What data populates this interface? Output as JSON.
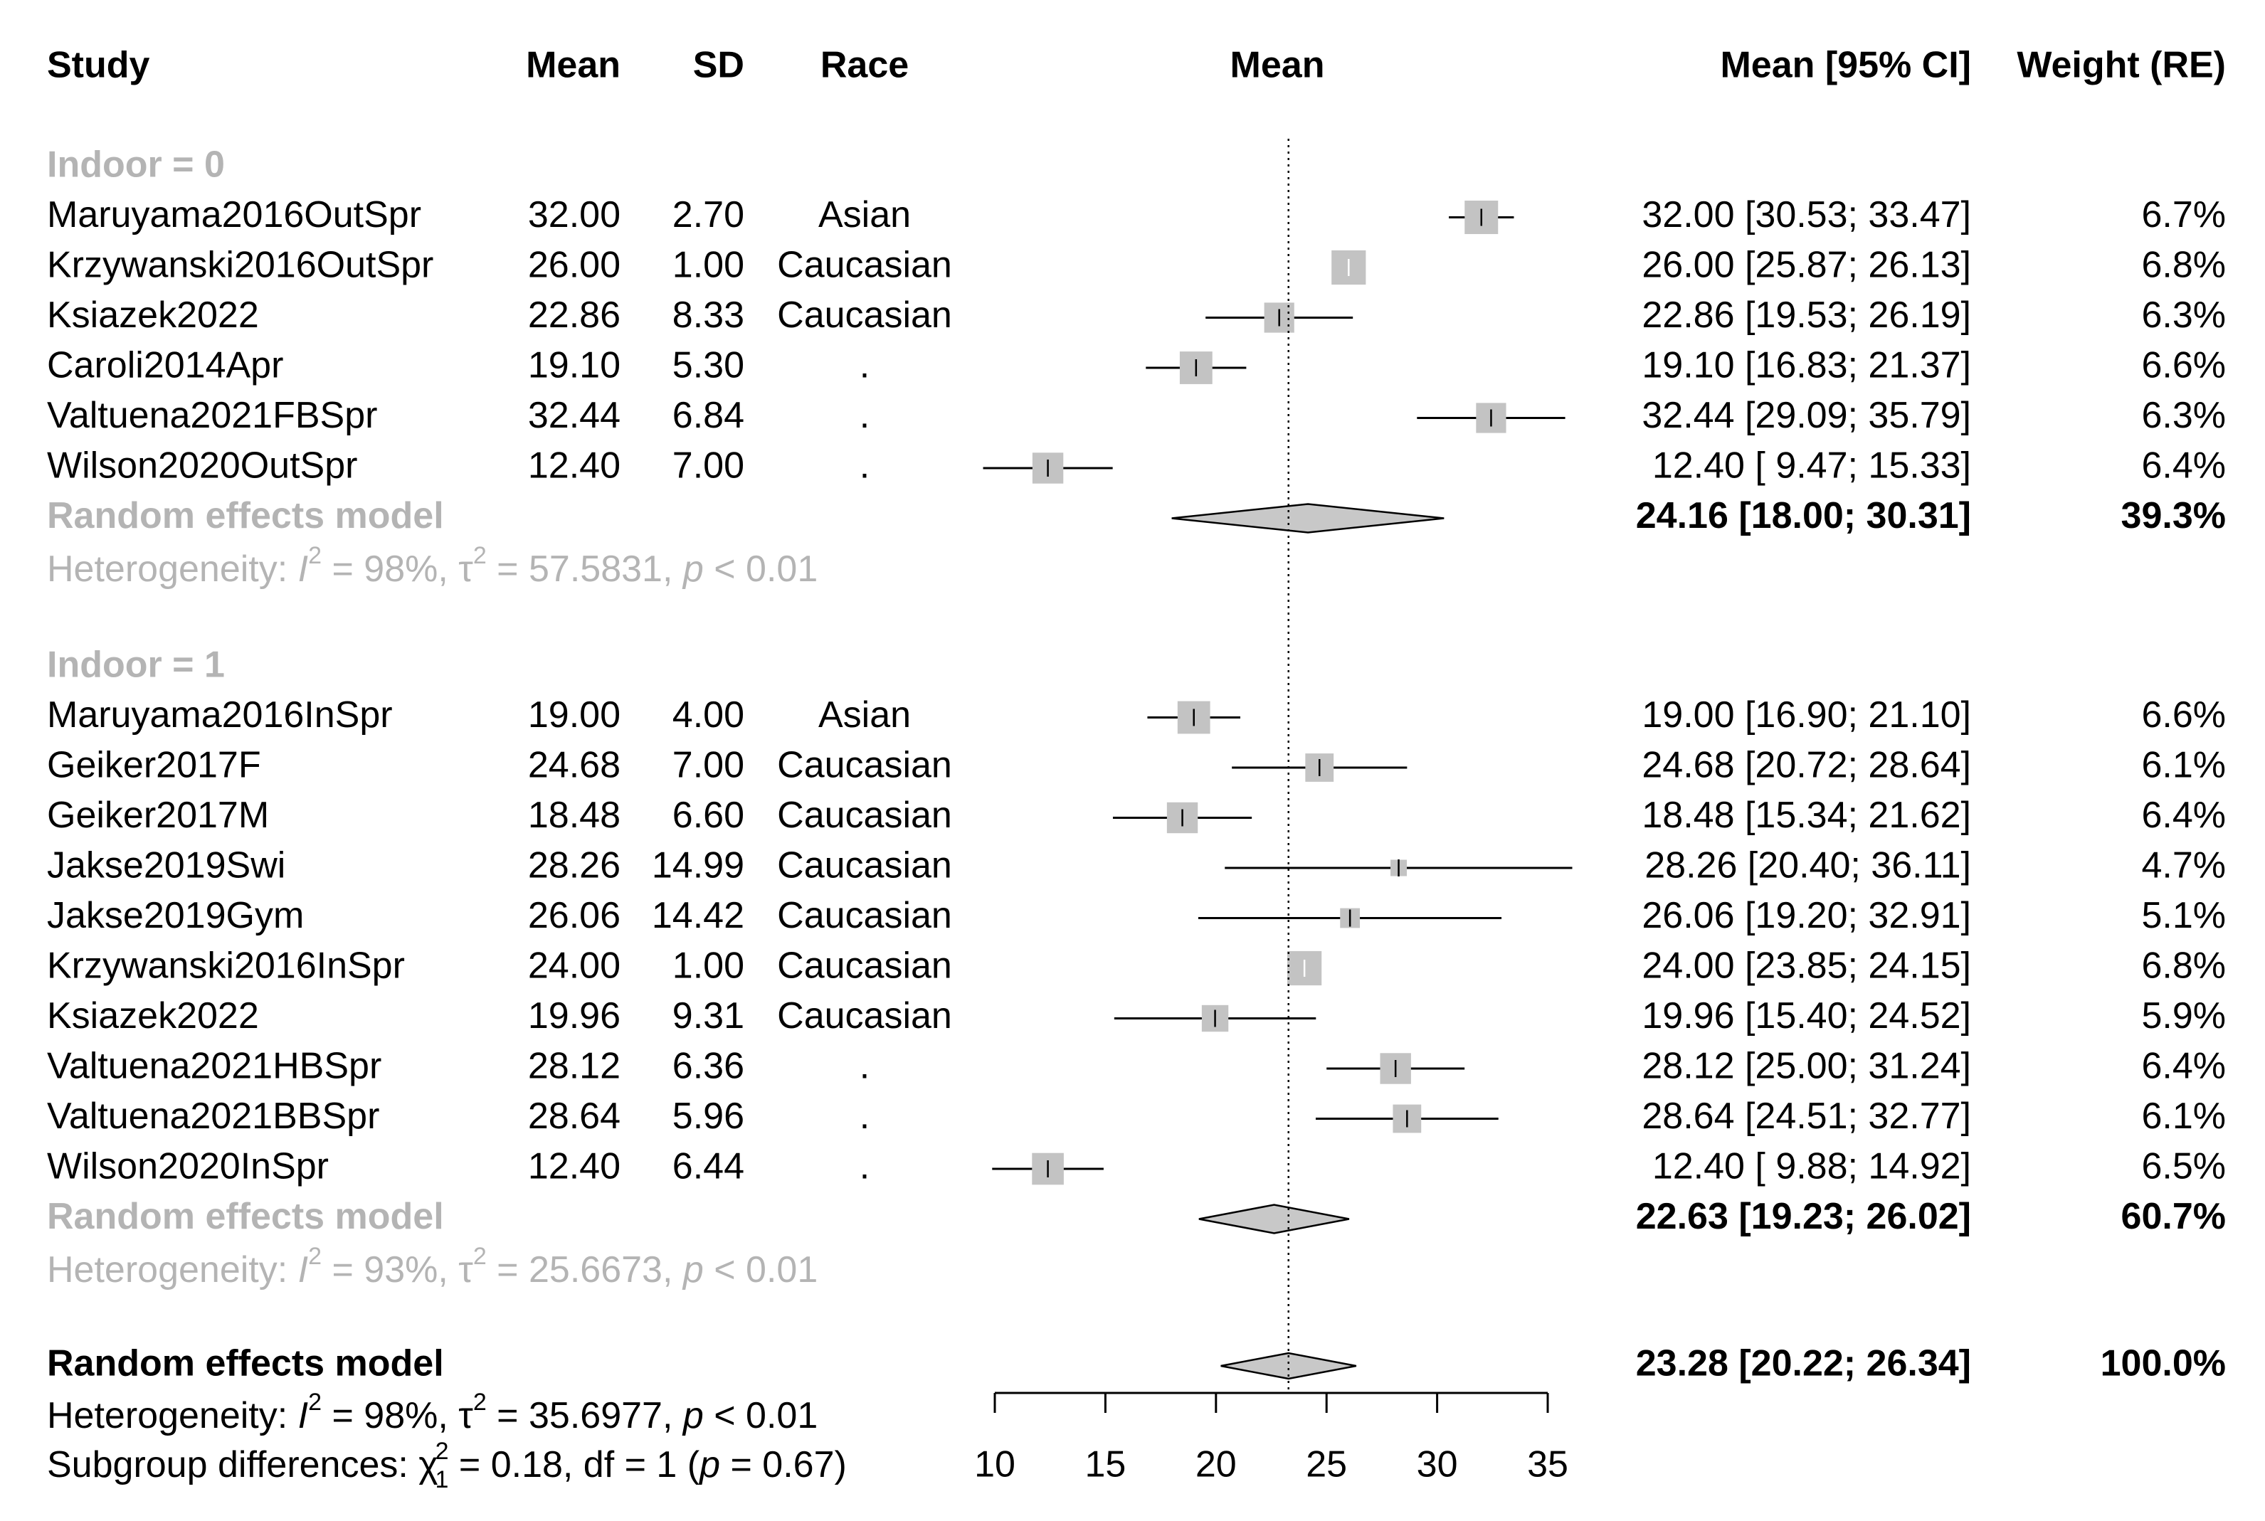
{
  "header": {
    "study": "Study",
    "mean": "Mean",
    "sd": "SD",
    "race": "Race",
    "plot": "Mean",
    "ci": "Mean [95% CI]",
    "weight": "Weight (RE)"
  },
  "colors": {
    "subgroup_gray": "#b4b4b4",
    "box_gray": "#c3c3c3",
    "ink": "#000000",
    "diamond_fill": "#c8c8c8"
  },
  "chart_data": {
    "type": "forest",
    "xlabel": "",
    "ylabel": "",
    "xlim": [
      10,
      35
    ],
    "xticks": [
      10,
      15,
      20,
      25,
      30,
      35
    ],
    "reference_line": 23.28,
    "groups": [
      {
        "label": "Indoor = 0",
        "studies": [
          {
            "name": "Maruyama2016OutSpr",
            "mean": "32.00",
            "sd": "2.70",
            "race": "Asian",
            "ci_text": "32.00 [30.53; 33.47]",
            "weight_text": "6.7%",
            "est": 32.0,
            "lo": 30.53,
            "hi": 33.47,
            "w": 6.7
          },
          {
            "name": "Krzywanski2016OutSpr",
            "mean": "26.00",
            "sd": "1.00",
            "race": "Caucasian",
            "ci_text": "26.00 [25.87; 26.13]",
            "weight_text": "6.8%",
            "est": 26.0,
            "lo": 25.87,
            "hi": 26.13,
            "w": 6.8
          },
          {
            "name": "Ksiazek2022",
            "mean": "22.86",
            "sd": "8.33",
            "race": "Caucasian",
            "ci_text": "22.86 [19.53; 26.19]",
            "weight_text": "6.3%",
            "est": 22.86,
            "lo": 19.53,
            "hi": 26.19,
            "w": 6.3
          },
          {
            "name": "Caroli2014Apr",
            "mean": "19.10",
            "sd": "5.30",
            "race": ".",
            "ci_text": "19.10 [16.83; 21.37]",
            "weight_text": "6.6%",
            "est": 19.1,
            "lo": 16.83,
            "hi": 21.37,
            "w": 6.6
          },
          {
            "name": "Valtuena2021FBSpr",
            "mean": "32.44",
            "sd": "6.84",
            "race": ".",
            "ci_text": "32.44 [29.09; 35.79]",
            "weight_text": "6.3%",
            "est": 32.44,
            "lo": 29.09,
            "hi": 35.79,
            "w": 6.3
          },
          {
            "name": "Wilson2020OutSpr",
            "mean": "12.40",
            "sd": "7.00",
            "race": ".",
            "ci_text": "12.40 [ 9.47; 15.33]",
            "weight_text": "6.4%",
            "est": 12.4,
            "lo": 9.47,
            "hi": 15.33,
            "w": 6.4
          }
        ],
        "model": {
          "label": "Random effects model",
          "ci_text": "24.16 [18.00; 30.31]",
          "weight_text": "39.3%",
          "est": 24.16,
          "lo": 18.0,
          "hi": 30.31
        },
        "heterogeneity": {
          "prefix": "Heterogeneity: ",
          "I2": "I",
          "I2_value": " = 98%, ",
          "tau": "τ",
          "tau_value": " = 57.5831, ",
          "p": "p",
          "p_value": " < 0.01"
        }
      },
      {
        "label": "Indoor = 1",
        "studies": [
          {
            "name": "Maruyama2016InSpr",
            "mean": "19.00",
            "sd": "4.00",
            "race": "Asian",
            "ci_text": "19.00 [16.90; 21.10]",
            "weight_text": "6.6%",
            "est": 19.0,
            "lo": 16.9,
            "hi": 21.1,
            "w": 6.6
          },
          {
            "name": "Geiker2017F",
            "mean": "24.68",
            "sd": "7.00",
            "race": "Caucasian",
            "ci_text": "24.68 [20.72; 28.64]",
            "weight_text": "6.1%",
            "est": 24.68,
            "lo": 20.72,
            "hi": 28.64,
            "w": 6.1
          },
          {
            "name": "Geiker2017M",
            "mean": "18.48",
            "sd": "6.60",
            "race": "Caucasian",
            "ci_text": "18.48 [15.34; 21.62]",
            "weight_text": "6.4%",
            "est": 18.48,
            "lo": 15.34,
            "hi": 21.62,
            "w": 6.4
          },
          {
            "name": "Jakse2019Swi",
            "mean": "28.26",
            "sd": "14.99",
            "race": "Caucasian",
            "ci_text": "28.26 [20.40; 36.11]",
            "weight_text": "4.7%",
            "est": 28.26,
            "lo": 20.4,
            "hi": 36.11,
            "w": 4.7
          },
          {
            "name": "Jakse2019Gym",
            "mean": "26.06",
            "sd": "14.42",
            "race": "Caucasian",
            "ci_text": "26.06 [19.20; 32.91]",
            "weight_text": "5.1%",
            "est": 26.06,
            "lo": 19.2,
            "hi": 32.91,
            "w": 5.1
          },
          {
            "name": "Krzywanski2016InSpr",
            "mean": "24.00",
            "sd": "1.00",
            "race": "Caucasian",
            "ci_text": "24.00 [23.85; 24.15]",
            "weight_text": "6.8%",
            "est": 24.0,
            "lo": 23.85,
            "hi": 24.15,
            "w": 6.8
          },
          {
            "name": "Ksiazek2022",
            "mean": "19.96",
            "sd": "9.31",
            "race": "Caucasian",
            "ci_text": "19.96 [15.40; 24.52]",
            "weight_text": "5.9%",
            "est": 19.96,
            "lo": 15.4,
            "hi": 24.52,
            "w": 5.9
          },
          {
            "name": "Valtuena2021HBSpr",
            "mean": "28.12",
            "sd": "6.36",
            "race": ".",
            "ci_text": "28.12 [25.00; 31.24]",
            "weight_text": "6.4%",
            "est": 28.12,
            "lo": 25.0,
            "hi": 31.24,
            "w": 6.4
          },
          {
            "name": "Valtuena2021BBSpr",
            "mean": "28.64",
            "sd": "5.96",
            "race": ".",
            "ci_text": "28.64 [24.51; 32.77]",
            "weight_text": "6.1%",
            "est": 28.64,
            "lo": 24.51,
            "hi": 32.77,
            "w": 6.1
          },
          {
            "name": "Wilson2020InSpr",
            "mean": "12.40",
            "sd": "6.44",
            "race": ".",
            "ci_text": "12.40 [ 9.88; 14.92]",
            "weight_text": "6.5%",
            "est": 12.4,
            "lo": 9.88,
            "hi": 14.92,
            "w": 6.5
          }
        ],
        "model": {
          "label": "Random effects model",
          "ci_text": "22.63 [19.23; 26.02]",
          "weight_text": "60.7%",
          "est": 22.63,
          "lo": 19.23,
          "hi": 26.02
        },
        "heterogeneity": {
          "prefix": "Heterogeneity: ",
          "I2": "I",
          "I2_value": " = 93%, ",
          "tau": "τ",
          "tau_value": " = 25.6673, ",
          "p": "p",
          "p_value": " < 0.01"
        }
      }
    ],
    "overall": {
      "label": "Random effects model",
      "ci_text": "23.28 [20.22; 26.34]",
      "weight_text": "100.0%",
      "est": 23.28,
      "lo": 20.22,
      "hi": 26.34,
      "heterogeneity": {
        "prefix": "Heterogeneity: ",
        "I2": "I",
        "I2_value": " = 98%, ",
        "tau": "τ",
        "tau_value": " = 35.6977, ",
        "p": "p",
        "p_value": " < 0.01"
      },
      "subgroup": {
        "prefix": "Subgroup differences: ",
        "chi": "χ",
        "chi_value": " = 0.18, df = 1 (",
        "p": "p",
        "p_value": " = 0.67)",
        "df_sub": "1"
      }
    }
  }
}
